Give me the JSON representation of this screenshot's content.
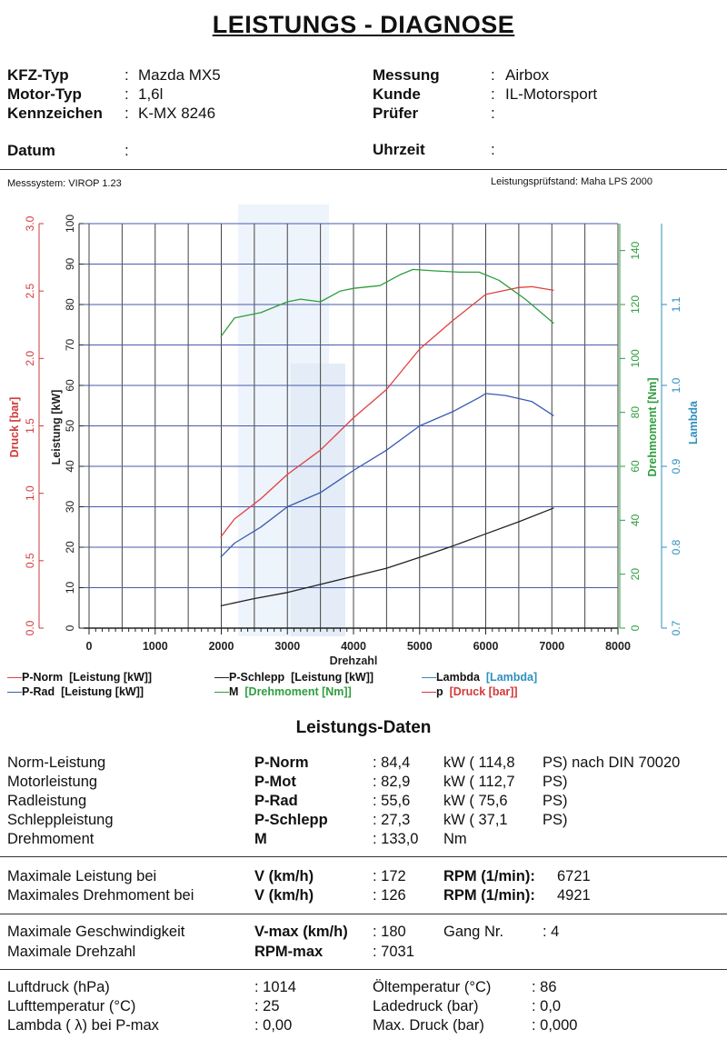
{
  "title": "LEISTUNGS - DIAGNOSE",
  "header": {
    "kfz_typ": {
      "label": "KFZ-Typ",
      "value": "Mazda MX5"
    },
    "motor_typ": {
      "label": "Motor-Typ",
      "value": "1,6l"
    },
    "kennzeichen": {
      "label": "Kennzeichen",
      "value": "K-MX 8246"
    },
    "datum": {
      "label": "Datum",
      "value": ""
    },
    "messung": {
      "label": "Messung",
      "value": "Airbox"
    },
    "kunde": {
      "label": "Kunde",
      "value": "IL-Motorsport"
    },
    "pruefer": {
      "label": "Prüfer",
      "value": ""
    },
    "uhrzeit": {
      "label": "Uhrzeit",
      "value": ""
    },
    "messsystem": "Messsystem: VIROP 1.23",
    "pruefstand": "Leistungsprüfstand: Maha LPS 2000"
  },
  "chart_data": {
    "type": "line",
    "xlabel": "Drehzahl",
    "xlim": [
      0,
      8000
    ],
    "xticks": [
      "0",
      "1000",
      "2000",
      "3000",
      "4000",
      "5000",
      "6000",
      "7000",
      "8000"
    ],
    "axes": {
      "druck": {
        "label": "Druck [bar]",
        "color": "#d23a3a",
        "lim": [
          0,
          3
        ],
        "ticks": [
          "0.0",
          "0.5",
          "1.0",
          "1.5",
          "2.0",
          "2.5",
          "3.0"
        ]
      },
      "leistung": {
        "label": "Leistung [kW]",
        "color": "#222222",
        "lim": [
          0,
          100
        ],
        "ticks": [
          "0",
          "10",
          "20",
          "30",
          "40",
          "50",
          "60",
          "70",
          "80",
          "90",
          "100"
        ]
      },
      "drehmoment": {
        "label": "Drehmoment [Nm]",
        "color": "#2e9e3e",
        "lim": [
          0,
          150
        ],
        "ticks": [
          "0",
          "20",
          "40",
          "60",
          "80",
          "100",
          "120",
          "140"
        ]
      },
      "lambda": {
        "label": "Lambda",
        "color": "#2f8fc0",
        "lim": [
          0.7,
          1.2
        ],
        "ticks": [
          "0.7",
          "0.8",
          "0.9",
          "1.0",
          "1.1"
        ]
      }
    },
    "series": [
      {
        "name": "P-Norm",
        "unit": "[Leistung [kW]]",
        "axis": "leistung",
        "color": "#e04040",
        "x": [
          1990,
          2200,
          2600,
          3000,
          3500,
          4000,
          4500,
          5000,
          5500,
          6000,
          6500,
          6700,
          7030
        ],
        "y": [
          22.5,
          27,
          32,
          38,
          44,
          52,
          59,
          69,
          76,
          82.5,
          84.2,
          84.4,
          83.5
        ]
      },
      {
        "name": "P-Rad",
        "unit": "[Leistung [kW]]",
        "axis": "leistung",
        "color": "#3a5bb0",
        "x": [
          1990,
          2200,
          2600,
          3000,
          3500,
          4000,
          4500,
          5000,
          5500,
          5900,
          6000,
          6300,
          6700,
          7030
        ],
        "y": [
          17.5,
          21,
          25,
          30,
          33.5,
          39,
          44,
          50,
          53.5,
          57,
          58,
          57.5,
          56,
          52.5
        ]
      },
      {
        "name": "P-Schlepp",
        "unit": "[Leistung [kW]]",
        "axis": "leistung",
        "color": "#222222",
        "x": [
          1990,
          2500,
          3000,
          3500,
          4000,
          4500,
          5000,
          5500,
          6000,
          6500,
          7030
        ],
        "y": [
          5.5,
          7.3,
          8.8,
          10.8,
          12.8,
          14.8,
          17.5,
          20.3,
          23.3,
          26.3,
          29.7
        ]
      },
      {
        "name": "M",
        "unit": "[Drehmoment [Nm]]",
        "axis": "drehmoment",
        "color": "#2e9e3e",
        "x": [
          1990,
          2200,
          2600,
          3000,
          3200,
          3500,
          3800,
          4000,
          4400,
          4700,
          4900,
          5200,
          5600,
          5900,
          6200,
          6600,
          7030
        ],
        "y": [
          108,
          115,
          117,
          121,
          122,
          121,
          125,
          126,
          127,
          131,
          133,
          132.5,
          132,
          132,
          129,
          122,
          113
        ]
      },
      {
        "name": "Lambda",
        "unit": "[Lambda]",
        "axis": "lambda",
        "color": "#2f8fc0",
        "x": [],
        "y": []
      },
      {
        "name": "p",
        "unit": "[Druck [bar]]",
        "axis": "druck",
        "color": "#d23a3a",
        "x": [],
        "y": []
      }
    ]
  },
  "results": {
    "heading": "Leistungs-Daten",
    "rows": [
      {
        "label": "Norm-Leistung",
        "key": "P-Norm",
        "value": ": 84,4",
        "unit": "kW ( 114,8",
        "ps": "PS) nach DIN 70020"
      },
      {
        "label": "Motorleistung",
        "key": "P-Mot",
        "value": ": 82,9",
        "unit": "kW ( 112,7",
        "ps": "PS)"
      },
      {
        "label": "Radleistung",
        "key": "P-Rad",
        "value": ": 55,6",
        "unit": "kW ( 75,6",
        "ps": "PS)"
      },
      {
        "label": "Schleppleistung",
        "key": "P-Schlepp",
        "value": ": 27,3",
        "unit": "kW ( 37,1",
        "ps": "PS)"
      },
      {
        "label": "Drehmoment",
        "key": "M",
        "value": ": 133,0",
        "unit": "Nm",
        "ps": ""
      }
    ],
    "max_rows": [
      {
        "label": "Maximale Leistung bei",
        "key": "V (km/h)",
        "value": ": 172",
        "rpm_label": "RPM (1/min):",
        "rpm": "6721"
      },
      {
        "label": "Maximales Drehmoment bei",
        "key": "V (km/h)",
        "value": ": 126",
        "rpm_label": "RPM (1/min):",
        "rpm": "4921"
      }
    ],
    "vmax": {
      "label": "Maximale Geschwindigkeit",
      "key": "V-max (km/h)",
      "value": ": 180",
      "gang_label": "Gang Nr.",
      "gang": ": 4"
    },
    "rpmmax": {
      "label": "Maximale Drehzahl",
      "key": "RPM-max",
      "value": ": 7031"
    },
    "env": [
      {
        "label": "Luftdruck (hPa)",
        "value": ": 1014",
        "label2": "Öltemperatur (°C)",
        "value2": ": 86"
      },
      {
        "label": "Lufttemperatur (°C)",
        "value": ": 25",
        "label2": "Ladedruck (bar)",
        "value2": ": 0,0"
      },
      {
        "label": "Lambda ( λ) bei P-max",
        "value": ": 0,00",
        "label2": "Max. Druck (bar)",
        "value2": ": 0,000"
      }
    ]
  }
}
